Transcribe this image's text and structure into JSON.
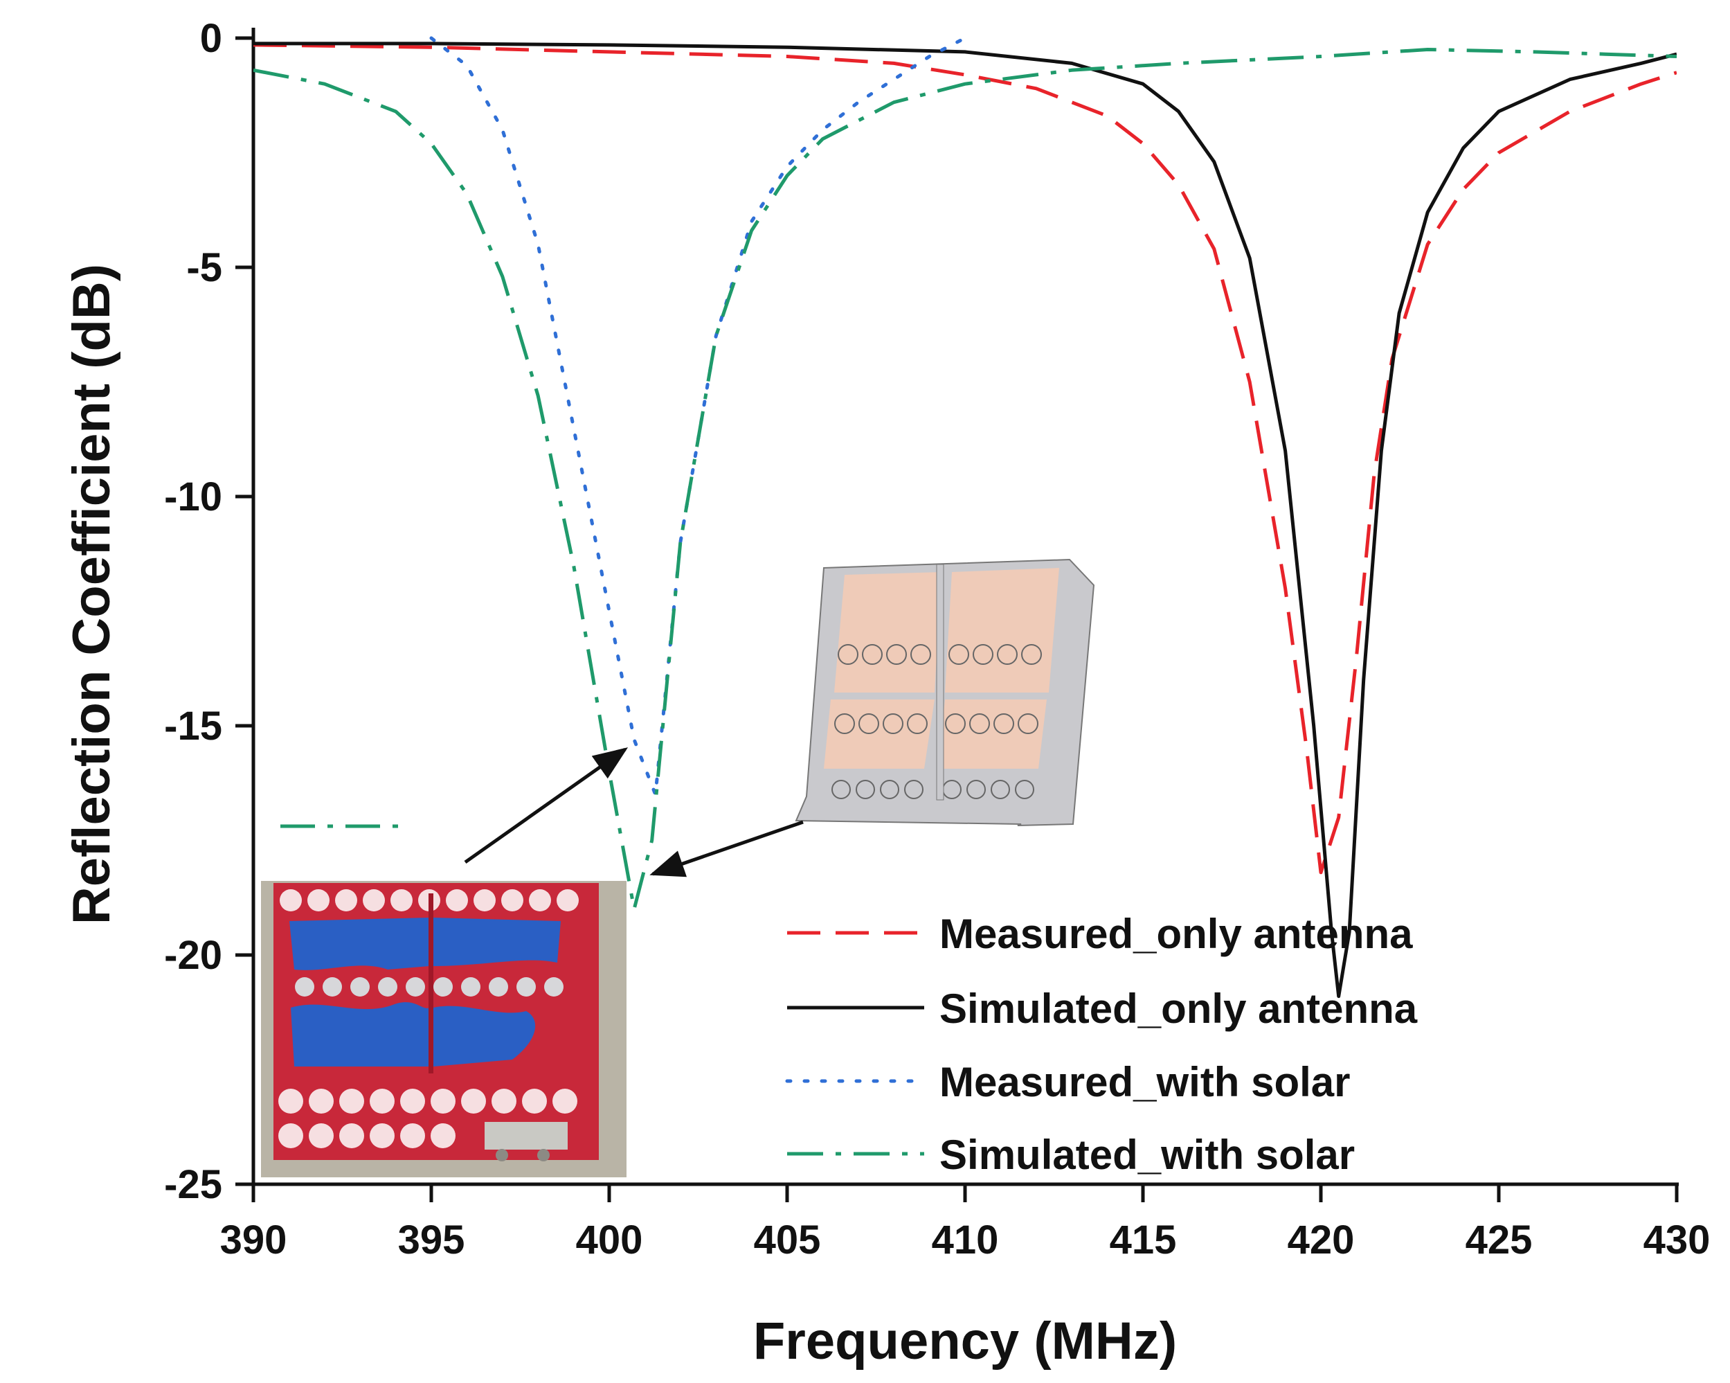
{
  "chart_data": {
    "type": "line",
    "title": "",
    "xlabel": "Frequency (MHz)",
    "ylabel": "Reflection Coefficient (dB)",
    "xlim": [
      390,
      430
    ],
    "ylim": [
      -25,
      0
    ],
    "xticks": [
      "390",
      "395",
      "400",
      "405",
      "410",
      "415",
      "420",
      "425",
      "430"
    ],
    "yticks": [
      "0",
      "-5",
      "-10",
      "-15",
      "-20",
      "-25"
    ],
    "grid": false,
    "legend_position": "bottom-right",
    "series": [
      {
        "name": "Measured_only antenna",
        "color": "#e8232a",
        "style": "dashed",
        "points": [
          [
            390,
            -0.15
          ],
          [
            395,
            -0.2
          ],
          [
            400,
            -0.3
          ],
          [
            405,
            -0.4
          ],
          [
            408,
            -0.55
          ],
          [
            410,
            -0.8
          ],
          [
            412,
            -1.1
          ],
          [
            414,
            -1.7
          ],
          [
            415,
            -2.3
          ],
          [
            416,
            -3.2
          ],
          [
            417,
            -4.6
          ],
          [
            418,
            -7.5
          ],
          [
            419,
            -12.0
          ],
          [
            419.6,
            -15.5
          ],
          [
            420,
            -18.2
          ],
          [
            420.5,
            -17.0
          ],
          [
            421,
            -13.5
          ],
          [
            421.5,
            -9.5
          ],
          [
            422,
            -7.0
          ],
          [
            423,
            -4.5
          ],
          [
            424,
            -3.3
          ],
          [
            425,
            -2.5
          ],
          [
            427,
            -1.6
          ],
          [
            429,
            -1.0
          ],
          [
            430,
            -0.75
          ]
        ]
      },
      {
        "name": "Simulated_only antenna",
        "color": "#111111",
        "style": "solid",
        "points": [
          [
            390,
            -0.12
          ],
          [
            395,
            -0.12
          ],
          [
            400,
            -0.15
          ],
          [
            405,
            -0.2
          ],
          [
            410,
            -0.3
          ],
          [
            413,
            -0.55
          ],
          [
            415,
            -1.0
          ],
          [
            416,
            -1.6
          ],
          [
            417,
            -2.7
          ],
          [
            418,
            -4.8
          ],
          [
            419,
            -9.0
          ],
          [
            419.8,
            -15.0
          ],
          [
            420.3,
            -19.5
          ],
          [
            420.5,
            -20.9
          ],
          [
            420.8,
            -19.5
          ],
          [
            421.2,
            -14.0
          ],
          [
            421.7,
            -9.0
          ],
          [
            422.2,
            -6.0
          ],
          [
            423,
            -3.8
          ],
          [
            424,
            -2.4
          ],
          [
            425,
            -1.6
          ],
          [
            427,
            -0.9
          ],
          [
            429,
            -0.55
          ],
          [
            430,
            -0.35
          ]
        ]
      },
      {
        "name": "Measured_with solar",
        "color": "#2f6fd6",
        "style": "dotted",
        "points": [
          [
            395,
            0
          ],
          [
            396,
            -0.6
          ],
          [
            397,
            -2.0
          ],
          [
            398,
            -4.5
          ],
          [
            399,
            -8.5
          ],
          [
            400,
            -12.5
          ],
          [
            400.7,
            -15.3
          ],
          [
            401.3,
            -16.5
          ],
          [
            402,
            -11.0
          ],
          [
            403,
            -6.5
          ],
          [
            404,
            -4.0
          ],
          [
            405,
            -2.8
          ],
          [
            406,
            -2.0
          ],
          [
            407,
            -1.4
          ],
          [
            408,
            -0.9
          ],
          [
            409,
            -0.4
          ],
          [
            410,
            0
          ]
        ]
      },
      {
        "name": "Simulated_with solar",
        "color": "#1f9a6b",
        "style": "dashdot",
        "points": [
          [
            390,
            -0.7
          ],
          [
            392,
            -1.0
          ],
          [
            394,
            -1.6
          ],
          [
            395,
            -2.3
          ],
          [
            396,
            -3.4
          ],
          [
            397,
            -5.2
          ],
          [
            398,
            -7.8
          ],
          [
            399,
            -11.5
          ],
          [
            400,
            -16.0
          ],
          [
            400.7,
            -19.0
          ],
          [
            401.2,
            -17.5
          ],
          [
            402,
            -11.0
          ],
          [
            403,
            -6.5
          ],
          [
            404,
            -4.2
          ],
          [
            405,
            -3.0
          ],
          [
            406,
            -2.2
          ],
          [
            408,
            -1.4
          ],
          [
            410,
            -1.0
          ],
          [
            413,
            -0.7
          ],
          [
            416,
            -0.55
          ],
          [
            420,
            -0.4
          ],
          [
            423,
            -0.25
          ],
          [
            426,
            -0.3
          ],
          [
            428,
            -0.35
          ],
          [
            430,
            -0.4
          ]
        ]
      }
    ]
  }
}
